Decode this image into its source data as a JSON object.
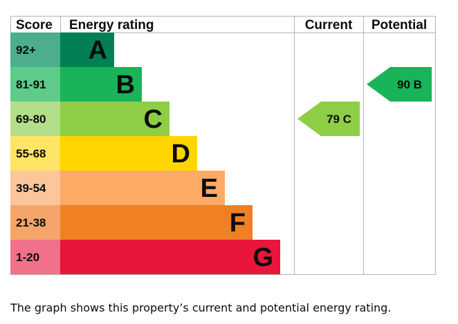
{
  "chart_data": {
    "type": "bar",
    "title": "Energy rating",
    "headers": {
      "score": "Score",
      "rating": "Energy rating",
      "current": "Current",
      "potential": "Potential"
    },
    "bands": [
      {
        "score": "92+",
        "letter": "A",
        "bar_color": "#008054",
        "score_color": "#4cae8f"
      },
      {
        "score": "81-91",
        "letter": "B",
        "bar_color": "#19b459",
        "score_color": "#5ecb8a"
      },
      {
        "score": "69-80",
        "letter": "C",
        "bar_color": "#8dce46",
        "score_color": "#b4df8a"
      },
      {
        "score": "55-68",
        "letter": "D",
        "bar_color": "#ffd500",
        "score_color": "#ffe466"
      },
      {
        "score": "39-54",
        "letter": "E",
        "bar_color": "#fcaa65",
        "score_color": "#fdc59a"
      },
      {
        "score": "21-38",
        "letter": "F",
        "bar_color": "#ef8023",
        "score_color": "#f4a66a"
      },
      {
        "score": "1-20",
        "letter": "G",
        "bar_color": "#e9153b",
        "score_color": "#f07189"
      }
    ],
    "current": {
      "value": 79,
      "letter": "C",
      "label": "79 C",
      "color": "#8dce46"
    },
    "potential": {
      "value": 90,
      "letter": "B",
      "label": "90 B",
      "color": "#19b459"
    }
  },
  "caption": "The graph shows this property’s current and potential energy rating."
}
